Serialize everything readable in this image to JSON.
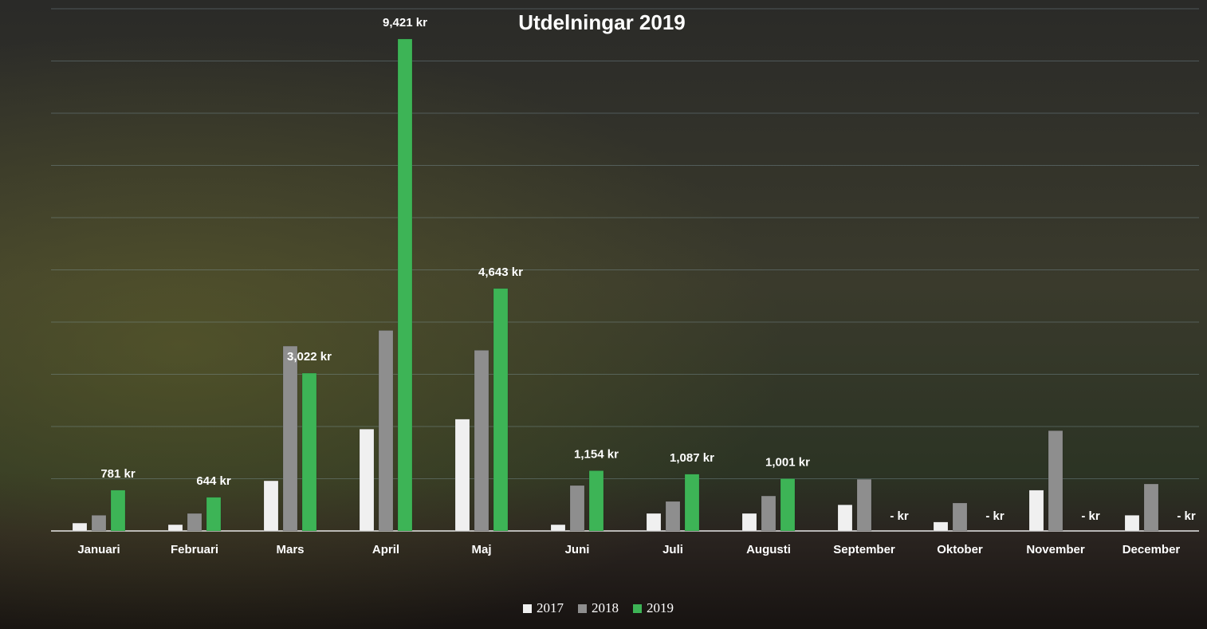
{
  "chart_data": {
    "type": "bar",
    "title": "Utdelningar 2019",
    "categories": [
      "Januari",
      "Februari",
      "Mars",
      "April",
      "Maj",
      "Juni",
      "Juli",
      "Augusti",
      "September",
      "Oktober",
      "November",
      "December"
    ],
    "series": [
      {
        "name": "2017",
        "color": "#f0f0f0",
        "values": [
          150,
          120,
          960,
          1950,
          2140,
          120,
          335,
          335,
          500,
          170,
          780,
          300
        ]
      },
      {
        "name": "2018",
        "color": "#8e8e8e",
        "values": [
          300,
          335,
          3540,
          3840,
          3460,
          870,
          565,
          670,
          990,
          535,
          1920,
          900
        ]
      },
      {
        "name": "2019",
        "color": "#3db456",
        "values": [
          781,
          644,
          3022,
          9421,
          4643,
          1154,
          1087,
          1001,
          0,
          0,
          0,
          0
        ],
        "value_labels": [
          "781 kr",
          "644 kr",
          "3,022 kr",
          "9,421 kr",
          "4,643 kr",
          "1,154 kr",
          "1,087 kr",
          "1,001 kr",
          "-  kr",
          "-  kr",
          "-  kr",
          "-  kr"
        ]
      }
    ],
    "ylim": [
      0,
      10000
    ],
    "yticks": [
      0,
      1000,
      2000,
      3000,
      4000,
      5000,
      6000,
      7000,
      8000,
      9000,
      10000
    ],
    "grid": true,
    "legend": "bottom"
  }
}
